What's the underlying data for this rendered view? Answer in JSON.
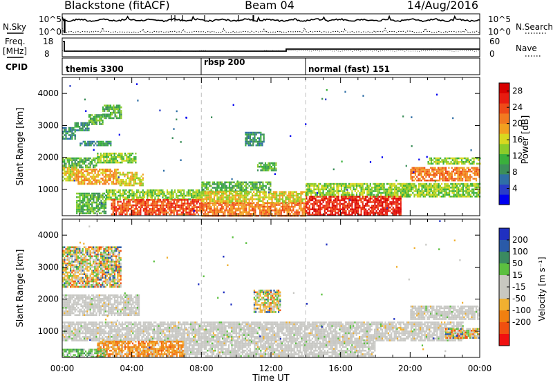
{
  "header": {
    "station": "Blackstone (fitACF)",
    "beam": "Beam 04",
    "date": "14/Aug/2016"
  },
  "noise_panel": {
    "left_label": "N.Sky",
    "right_label": "N.Search",
    "left_ticks": [
      "10^5",
      "10^0"
    ],
    "right_ticks": [
      "10^5",
      "10^0"
    ]
  },
  "freq_panel": {
    "left_label_line1": "Freq.",
    "left_label_line2": "[MHz]",
    "right_label": "Nave",
    "left_ticks": [
      "18",
      "8"
    ],
    "right_ticks": [
      "60",
      "0"
    ]
  },
  "cpid_panel": {
    "label": "CPID",
    "modes": [
      {
        "name": "themis 3300",
        "start_hour": 0
      },
      {
        "name": "rbsp 200",
        "start_hour": 8
      },
      {
        "name": "normal (fast) 151",
        "start_hour": 14
      }
    ]
  },
  "time_axis": {
    "label": "Time UT",
    "ticks": [
      "00:00",
      "04:00",
      "08:00",
      "12:00",
      "16:00",
      "20:00",
      "00:00"
    ]
  },
  "chart_data": [
    {
      "type": "heatmap",
      "title": "",
      "xlabel": "Time UT",
      "ylabel": "Slant Range [km]",
      "xlim": [
        0,
        24
      ],
      "ylim": [
        180,
        4500
      ],
      "y_ticks": [
        1000,
        2000,
        3000,
        4000
      ],
      "colorbar_label": "Power [dB]",
      "colorbar_ticks": [
        "4",
        "8",
        "12",
        "16",
        "20",
        "24",
        "28"
      ],
      "colorbar_colors": [
        "#0000f0",
        "#2a3cc8",
        "#2f6fa6",
        "#3c8f5a",
        "#3ab03c",
        "#8ccc2a",
        "#d8d820",
        "#f2a020",
        "#f27a20",
        "#ee4a18",
        "#e81c10",
        "#d80000"
      ],
      "scatter_regions": [
        {
          "t": [
            0.0,
            0.7
          ],
          "r": [
            2600,
            2950
          ],
          "level": 3
        },
        {
          "t": [
            0.7,
            1.5
          ],
          "r": [
            2850,
            3100
          ],
          "level": 3
        },
        {
          "t": [
            1.5,
            2.3
          ],
          "r": [
            3050,
            3350
          ],
          "level": 4
        },
        {
          "t": [
            2.3,
            3.4
          ],
          "r": [
            3250,
            3650
          ],
          "level": 4
        },
        {
          "t": [
            1.0,
            2.8
          ],
          "r": [
            2380,
            2520
          ],
          "level": 3
        },
        {
          "t": [
            0.0,
            2.0
          ],
          "r": [
            1700,
            2000
          ],
          "level": 4
        },
        {
          "t": [
            2.0,
            4.2
          ],
          "r": [
            1850,
            2150
          ],
          "level": 5
        },
        {
          "t": [
            0.0,
            0.8
          ],
          "r": [
            1300,
            1700
          ],
          "level": 6
        },
        {
          "t": [
            0.8,
            3.2
          ],
          "r": [
            1200,
            1650
          ],
          "level": 7
        },
        {
          "t": [
            3.2,
            4.6
          ],
          "r": [
            1150,
            1550
          ],
          "level": 6
        },
        {
          "t": [
            0.8,
            2.5
          ],
          "r": [
            280,
            900
          ],
          "level": 4
        },
        {
          "t": [
            2.5,
            8.0
          ],
          "r": [
            700,
            1000
          ],
          "level": 5
        },
        {
          "t": [
            2.8,
            8.0
          ],
          "r": [
            250,
            700
          ],
          "level": 9
        },
        {
          "t": [
            8.0,
            12.0
          ],
          "r": [
            950,
            1250
          ],
          "level": 4
        },
        {
          "t": [
            8.0,
            14.0
          ],
          "r": [
            600,
            950
          ],
          "level": 6
        },
        {
          "t": [
            8.0,
            14.0
          ],
          "r": [
            200,
            600
          ],
          "level": 8
        },
        {
          "t": [
            14.0,
            20.0
          ],
          "r": [
            800,
            1200
          ],
          "level": 5
        },
        {
          "t": [
            14.0,
            19.5
          ],
          "r": [
            200,
            800
          ],
          "level": 10
        },
        {
          "t": [
            19.5,
            24.0
          ],
          "r": [
            800,
            1200
          ],
          "level": 5
        },
        {
          "t": [
            20.0,
            24.0
          ],
          "r": [
            1300,
            1700
          ],
          "level": 8
        },
        {
          "t": [
            21.0,
            24.0
          ],
          "r": [
            1800,
            2000
          ],
          "level": 5
        },
        {
          "t": [
            11.2,
            12.3
          ],
          "r": [
            1600,
            1850
          ],
          "level": 4
        },
        {
          "t": [
            10.5,
            11.6
          ],
          "r": [
            2400,
            2800
          ],
          "level": 3
        }
      ]
    },
    {
      "type": "heatmap",
      "title": "",
      "xlabel": "Time UT",
      "ylabel": "Slant Range [km]",
      "xlim": [
        0,
        24
      ],
      "ylim": [
        180,
        4500
      ],
      "y_ticks": [
        1000,
        2000,
        3000,
        4000
      ],
      "colorbar_label": "Velocity [m s⁻¹]",
      "colorbar_ticks": [
        "200",
        "100",
        "50",
        "15",
        "-15",
        "-50",
        "-100",
        "-200"
      ],
      "colorbar_colors": [
        "#2030c0",
        "#2a5aa8",
        "#3a8a60",
        "#5cc040",
        "#c8c8c0",
        "#c8c8c0",
        "#f0b030",
        "#f08010",
        "#f05010",
        "#f01010"
      ],
      "scatter_regions": [
        {
          "t": [
            0.0,
            3.4
          ],
          "r": [
            2400,
            3650
          ],
          "class": "mixed"
        },
        {
          "t": [
            0.0,
            4.4
          ],
          "r": [
            1500,
            2150
          ],
          "class": "gs"
        },
        {
          "t": [
            0.0,
            23.0
          ],
          "r": [
            700,
            1300
          ],
          "class": "gs"
        },
        {
          "t": [
            2.0,
            7.0
          ],
          "r": [
            250,
            700
          ],
          "class": "neg"
        },
        {
          "t": [
            7.0,
            18.0
          ],
          "r": [
            250,
            700
          ],
          "class": "gs"
        },
        {
          "t": [
            0.0,
            2.5
          ],
          "r": [
            180,
            450
          ],
          "class": "pos"
        },
        {
          "t": [
            20.0,
            24.0
          ],
          "r": [
            1400,
            1800
          ],
          "class": "gs"
        },
        {
          "t": [
            22.0,
            24.0
          ],
          "r": [
            800,
            1100
          ],
          "class": "mixed"
        },
        {
          "t": [
            11.0,
            12.5
          ],
          "r": [
            1600,
            2300
          ],
          "class": "mixed"
        }
      ]
    }
  ]
}
